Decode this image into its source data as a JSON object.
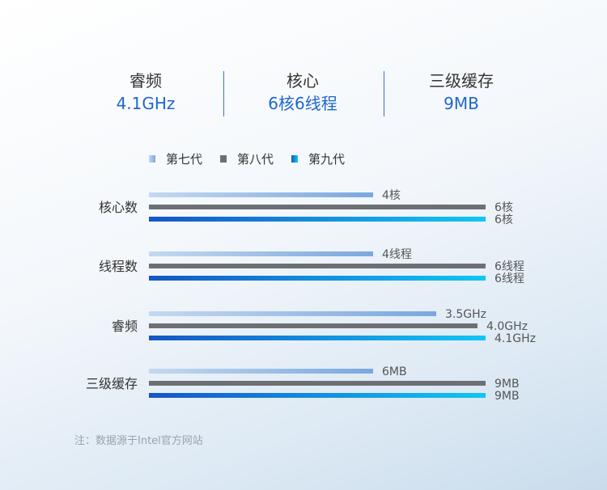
{
  "specs": [
    {
      "label": "睿频",
      "value": "4.1GHz"
    },
    {
      "label": "核心",
      "value": "6核6线程"
    },
    {
      "label": "三级缓存",
      "value": "9MB"
    }
  ],
  "chart_data": {
    "type": "bar",
    "orientation": "horizontal",
    "legend_position": "top",
    "series": [
      {
        "name": "第七代",
        "color_start": "#c4d9f0",
        "color_end": "#7aa8de"
      },
      {
        "name": "第八代",
        "color_start": "#6c6f74",
        "color_end": "#6c6f74"
      },
      {
        "name": "第九代",
        "color_start": "#1556c6",
        "color_end": "#10c6f6"
      }
    ],
    "groups": [
      {
        "category": "核心数",
        "values": [
          4,
          6,
          6
        ],
        "labels": [
          "4核",
          "6核",
          "6核"
        ],
        "max": 6
      },
      {
        "category": "线程数",
        "values": [
          4,
          6,
          6
        ],
        "labels": [
          "4线程",
          "6线程",
          "6线程"
        ],
        "max": 6
      },
      {
        "category": "睿频",
        "values": [
          3.5,
          4.0,
          4.1
        ],
        "labels": [
          "3.5GHz",
          "4.0GHz",
          "4.1GHz"
        ],
        "max": 4.1
      },
      {
        "category": "三级缓存",
        "values": [
          6,
          9,
          9
        ],
        "labels": [
          "6MB",
          "9MB",
          "9MB"
        ],
        "max": 9
      }
    ]
  },
  "note": "注：数据源于Intel官方网站"
}
